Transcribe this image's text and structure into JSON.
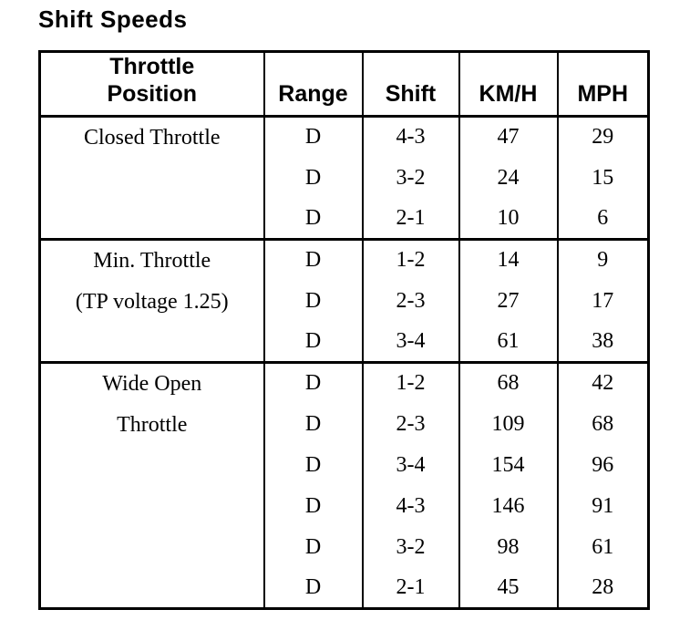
{
  "page": {
    "title": "Shift Speeds"
  },
  "table": {
    "header": {
      "throttle_position_line1": "Throttle",
      "throttle_position_line2": "Position",
      "range": "Range",
      "shift": "Shift",
      "kmh": "KM/H",
      "mph": "MPH"
    },
    "sections": [
      {
        "label_line1": "Closed Throttle",
        "label_line2": "",
        "rows": [
          {
            "range": "D",
            "shift": "4-3",
            "kmh": "47",
            "mph": "29"
          },
          {
            "range": "D",
            "shift": "3-2",
            "kmh": "24",
            "mph": "15"
          },
          {
            "range": "D",
            "shift": "2-1",
            "kmh": "10",
            "mph": "6"
          }
        ]
      },
      {
        "label_line1": "Min. Throttle",
        "label_line2": "(TP voltage 1.25)",
        "rows": [
          {
            "range": "D",
            "shift": "1-2",
            "kmh": "14",
            "mph": "9"
          },
          {
            "range": "D",
            "shift": "2-3",
            "kmh": "27",
            "mph": "17"
          },
          {
            "range": "D",
            "shift": "3-4",
            "kmh": "61",
            "mph": "38"
          }
        ]
      },
      {
        "label_line1": "Wide Open",
        "label_line2": "Throttle",
        "rows": [
          {
            "range": "D",
            "shift": "1-2",
            "kmh": "68",
            "mph": "42"
          },
          {
            "range": "D",
            "shift": "2-3",
            "kmh": "109",
            "mph": "68"
          },
          {
            "range": "D",
            "shift": "3-4",
            "kmh": "154",
            "mph": "96"
          },
          {
            "range": "D",
            "shift": "4-3",
            "kmh": "146",
            "mph": "91"
          },
          {
            "range": "D",
            "shift": "3-2",
            "kmh": "98",
            "mph": "61"
          },
          {
            "range": "D",
            "shift": "2-1",
            "kmh": "45",
            "mph": "28"
          }
        ]
      }
    ]
  }
}
